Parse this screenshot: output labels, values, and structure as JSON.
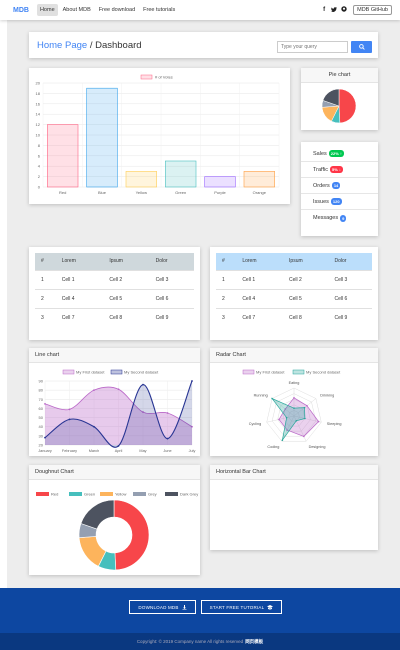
{
  "navbar": {
    "brand": "MDB",
    "links": [
      "Home",
      "About MDB",
      "Free download",
      "Free tutorials"
    ],
    "social": [
      "f",
      "’",
      "■"
    ],
    "github": "MDB GitHub"
  },
  "breadcrumb": {
    "home": "Home Page",
    "separator": "/",
    "current": "Dashboard"
  },
  "search": {
    "placeholder": "Type your query"
  },
  "pie_card": {
    "title": "Pie chart"
  },
  "stats": [
    {
      "label": "Sales",
      "badge": "22%",
      "arrow": "↑",
      "color": "#00c851"
    },
    {
      "label": "Traffic",
      "badge": "5%",
      "arrow": "↓",
      "color": "#ff3547"
    },
    {
      "label": "Orders",
      "badge": "14",
      "arrow": "",
      "color": "#4285f4"
    },
    {
      "label": "Issues",
      "badge": "120",
      "arrow": "",
      "color": "#4285f4"
    },
    {
      "label": "Messages",
      "badge": "9",
      "arrow": "",
      "color": "#4285f4"
    }
  ],
  "table1": {
    "header_bg": "#cfd8dc",
    "headers": [
      "#",
      "Lorem",
      "Ipsum",
      "Dolor"
    ],
    "rows": [
      [
        "1",
        "Cell 1",
        "Cell 2",
        "Cell 3"
      ],
      [
        "2",
        "Cell 4",
        "Cell 5",
        "Cell 6"
      ],
      [
        "3",
        "Cell 7",
        "Cell 8",
        "Cell 9"
      ]
    ]
  },
  "table2": {
    "header_bg": "#bbdefb",
    "headers": [
      "#",
      "Lorem",
      "Ipsum",
      "Dolor"
    ],
    "rows": [
      [
        "1",
        "Cell 1",
        "Cell 2",
        "Cell 3"
      ],
      [
        "2",
        "Cell 4",
        "Cell 5",
        "Cell 6"
      ],
      [
        "3",
        "Cell 7",
        "Cell 8",
        "Cell 9"
      ]
    ]
  },
  "line_card": {
    "title": "Line chart"
  },
  "radar_card": {
    "title": "Radar Chart"
  },
  "doughnut_card": {
    "title": "Doughnut Chart"
  },
  "hbar_card": {
    "title": "Horizontal Bar Chart"
  },
  "footer": {
    "download": "DOWNLOAD MDB",
    "tutorial": "START FREE TUTORIAL",
    "copyright": "Copyright: © 2019 Company name All rights reserved",
    "copyright_brand": "网页模板"
  },
  "chart_data": [
    {
      "type": "bar",
      "series": [
        {
          "name": "# of Votes",
          "values": [
            12,
            19,
            3,
            5,
            2,
            3
          ]
        }
      ],
      "categories": [
        "Red",
        "Blue",
        "Yellow",
        "Green",
        "Purple",
        "Orange"
      ],
      "ylim": [
        0,
        20
      ],
      "yticks": [
        0,
        2,
        4,
        6,
        8,
        10,
        12,
        14,
        16,
        18,
        20
      ],
      "legend": "top",
      "colors": [
        "#ff6384",
        "#36a2eb",
        "#ffce56",
        "#4bc0c0",
        "#9966ff",
        "#ff9f40"
      ]
    },
    {
      "type": "pie",
      "values": [
        300,
        50,
        100,
        40,
        120
      ],
      "colors": [
        "#f7464a",
        "#46bfbd",
        "#fdb45c",
        "#949fb1",
        "#4d5360"
      ]
    },
    {
      "type": "line",
      "categories": [
        "January",
        "February",
        "March",
        "April",
        "May",
        "June",
        "July"
      ],
      "ylim": [
        20,
        90
      ],
      "yticks": [
        20,
        30,
        40,
        50,
        60,
        70,
        80,
        90
      ],
      "legend": "top",
      "series": [
        {
          "name": "My First dataset",
          "values": [
            65,
            59,
            80,
            81,
            56,
            55,
            40
          ],
          "color": "#ba68c8"
        },
        {
          "name": "My Second dataset",
          "values": [
            28,
            48,
            40,
            19,
            86,
            27,
            90
          ],
          "color": "#283593"
        }
      ]
    },
    {
      "type": "radar",
      "labels": [
        "Eating",
        "Drinking",
        "Sleeping",
        "Designing",
        "Coding",
        "Cycling",
        "Running"
      ],
      "series": [
        {
          "name": "My First dataset",
          "values": [
            65,
            59,
            90,
            81,
            56,
            55,
            40
          ],
          "color": "#ba68c8"
        },
        {
          "name": "My Second dataset",
          "values": [
            28,
            48,
            40,
            19,
            96,
            27,
            100
          ],
          "color": "#26a69a"
        }
      ]
    },
    {
      "type": "doughnut",
      "legend": "top",
      "labels": [
        "Red",
        "Green",
        "Yellow",
        "Grey",
        "Dark Grey"
      ],
      "values": [
        300,
        50,
        100,
        40,
        120
      ],
      "colors": [
        "#f7464a",
        "#46bfbd",
        "#fdb45c",
        "#949fb1",
        "#4d5360"
      ]
    }
  ]
}
